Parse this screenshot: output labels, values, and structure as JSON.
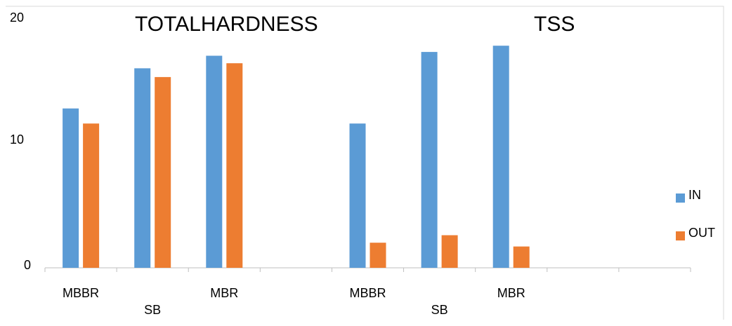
{
  "chart_data": {
    "type": "bar",
    "title_left": "TOTALHARDNESS",
    "title_right": "TSS",
    "y_ticks": [
      "0",
      "10",
      "20"
    ],
    "ylim": [
      0,
      20
    ],
    "categories": [
      "MBBR",
      "SB",
      "MBR",
      "",
      "MBBR",
      "SB",
      "MBR",
      "",
      ""
    ],
    "series": [
      {
        "name": "IN",
        "color": "#5b9bd5",
        "values": [
          12.7,
          15.9,
          16.9,
          null,
          11.5,
          17.2,
          17.7,
          null,
          null
        ]
      },
      {
        "name": "OUT",
        "color": "#ed7d31",
        "values": [
          11.5,
          15.2,
          16.3,
          null,
          2.0,
          2.6,
          1.7,
          null,
          null
        ]
      }
    ],
    "grid": false,
    "legend_position": "right"
  }
}
